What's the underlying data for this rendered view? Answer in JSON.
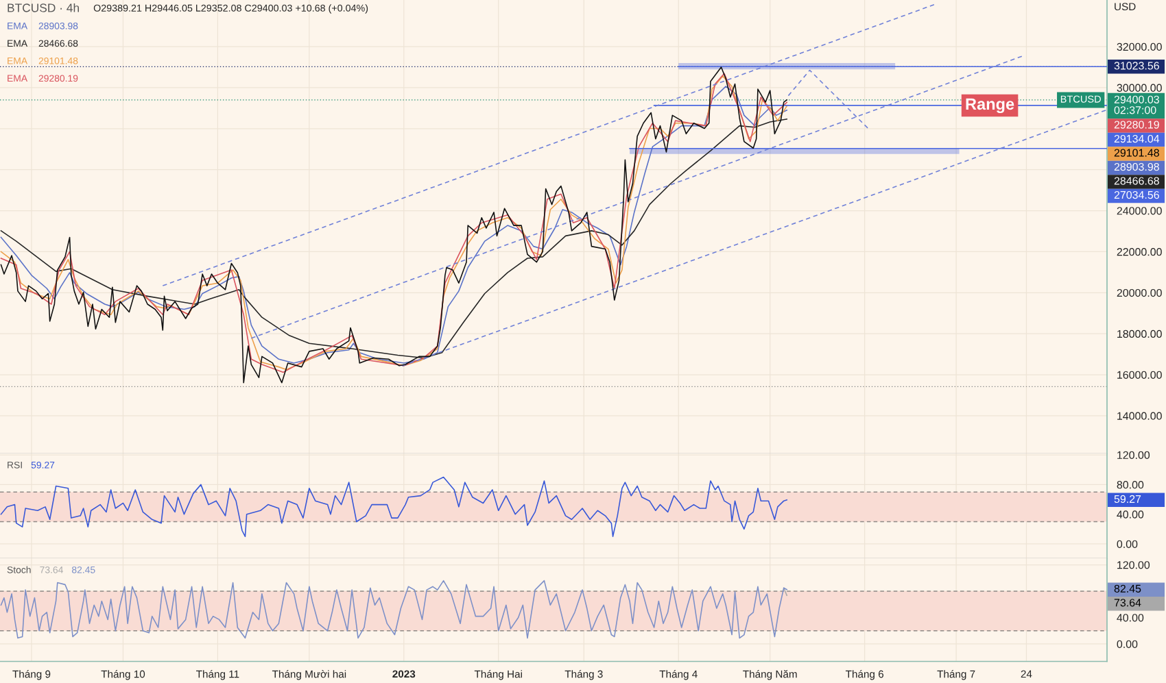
{
  "chart_data": [
    {
      "type": "line",
      "title": "BTCUSD · 4h",
      "subtitle": "O29389.21 H29446.05 L29352.08 C29400.03 +10.68 (+0.04%)",
      "ylabel": "USD",
      "legend": "top left",
      "grid": true,
      "tick_labels": "y",
      "xlim": [
        "2022-08-21T16:00",
        "2023-08-19T10:00"
      ],
      "xticks": [
        {
          "value": "2022-09-01",
          "label": null
        },
        {
          "value": "2022-10-01",
          "label": null
        },
        {
          "value": "2022-11-01",
          "label": null
        },
        {
          "value": "2022-12-01",
          "label": null
        },
        {
          "value": "2023-01-01",
          "label": null
        },
        {
          "value": "2023-02-01",
          "label": null
        },
        {
          "value": "2023-03-01",
          "label": null
        },
        {
          "value": "2023-04-01",
          "label": null
        },
        {
          "value": "2023-05-01",
          "label": null
        },
        {
          "value": "2023-06-01",
          "label": null
        },
        {
          "value": "2023-07-01",
          "label": null
        },
        {
          "value": "2023-07-24",
          "label": null
        }
      ],
      "ylim": [
        12158,
        34275
      ],
      "yticks": [
        {
          "value": 32000,
          "label": "32000.00"
        },
        {
          "value": 30000,
          "label": "30000.00"
        },
        {
          "value": 28000,
          "label": null
        },
        {
          "value": 26000,
          "label": null
        },
        {
          "value": 24000,
          "label": "24000.00"
        },
        {
          "value": 22000,
          "label": "22000.00"
        },
        {
          "value": 20000,
          "label": "20000.00"
        },
        {
          "value": 18000,
          "label": "18000.00"
        },
        {
          "value": 16000,
          "label": "16000.00"
        },
        {
          "value": 14000,
          "label": "14000.00"
        }
      ],
      "ref_lines": [
        {
          "axis": "y",
          "value": 31023.56,
          "label": "31023.56",
          "color": "#1b2a6b",
          "line_style": "dotted"
        },
        {
          "axis": "y",
          "value": 29400.03,
          "label": "29400.03\n02:37:00",
          "color": "#1f8f70",
          "line_style": "dotted"
        },
        {
          "axis": "y",
          "value": 15420,
          "color": "#8a8a8a",
          "line_style": "dotted"
        }
      ],
      "annotations": [
        {
          "text": "BTCUSD",
          "x": "2023-08-19T10:00",
          "y": 29400.03
        },
        {
          "text": "Range",
          "x": "2023-07-12",
          "y": 29130
        },
        "28903.98",
        "28466.68",
        "29101.48",
        "29280.19",
        "29134.04",
        "27034.56"
      ],
      "series": [
        {
          "name": "EMA",
          "color": "#5a72c8",
          "x": [
            "2022-08-22",
            "2022-08-27",
            "2022-09-01",
            "2022-09-06",
            "2022-09-08T12:00",
            "2022-09-10T12:00",
            "2022-09-13T12:00",
            "2022-09-15",
            "2022-09-19",
            "2022-09-25",
            "2022-09-27T12:00",
            "2022-10-01",
            "2022-10-06",
            "2022-10-09",
            "2022-10-15",
            "2022-10-21",
            "2022-10-24T12:00",
            "2022-10-27",
            "2022-11-01",
            "2022-11-05T12:00",
            "2022-11-08",
            "2022-11-09T12:00",
            "2022-11-12",
            "2022-11-15T12:00",
            "2022-11-21",
            "2022-11-26",
            "2022-12-01",
            "2022-12-07",
            "2022-12-14",
            "2022-12-15T12:00",
            "2022-12-17T12:00",
            "2022-12-23T12:00",
            "2023-01-01",
            "2023-01-07T12:00",
            "2023-01-12",
            "2023-01-15T12:00",
            "2023-01-19",
            "2023-01-22",
            "2023-01-27T12:00",
            "2023-02-04",
            "2023-02-08T12:00",
            "2023-02-12T12:00",
            "2023-02-15T12:00",
            "2023-02-19T12:00",
            "2023-02-22",
            "2023-02-25",
            "2023-03-02",
            "2023-03-05T12:00",
            "2023-03-09T12:00",
            "2023-03-13",
            "2023-03-15",
            "2023-03-17T12:00",
            "2023-03-21",
            "2023-03-23T12:00",
            "2023-03-29T12:00",
            "2023-04-02",
            "2023-04-09T12:00",
            "2023-04-12",
            "2023-04-16T12:00",
            "2023-04-20",
            "2023-04-22T12:00",
            "2023-04-26",
            "2023-04-27T12:00",
            "2023-05-01",
            "2023-05-03",
            "2023-05-06T12:00"
          ],
          "values": [
            22700,
            21810,
            20850,
            20210,
            19700,
            20270,
            20980,
            20470,
            19960,
            19440,
            19320,
            19570,
            20020,
            19700,
            19320,
            19190,
            19320,
            19960,
            20340,
            20720,
            20790,
            20080,
            18420,
            17400,
            16760,
            16570,
            16760,
            17080,
            17210,
            17530,
            17080,
            16760,
            16570,
            16760,
            17080,
            19320,
            20080,
            21230,
            22510,
            23280,
            23020,
            22260,
            22130,
            23150,
            24050,
            23920,
            23410,
            23150,
            22770,
            21360,
            22260,
            23920,
            25840,
            27120,
            27750,
            28140,
            28140,
            29420,
            30060,
            29670,
            28650,
            28140,
            28520,
            29030,
            28650,
            28903.98
          ]
        },
        {
          "name": "EMA",
          "color": "#262626",
          "x": [
            "2022-08-22",
            "2022-08-27",
            "2022-09-09",
            "2022-09-14",
            "2022-09-27T12:00",
            "2022-10-09",
            "2022-10-24T12:00",
            "2022-10-29T12:00",
            "2022-11-08",
            "2022-11-09T12:00",
            "2022-11-15T12:00",
            "2022-11-24T12:00",
            "2022-12-01",
            "2022-12-15",
            "2022-12-30",
            "2023-01-07T12:00",
            "2023-01-13T12:00",
            "2023-01-20T12:00",
            "2023-01-27T12:00",
            "2023-02-04",
            "2023-02-10T12:00",
            "2023-02-15T12:00",
            "2023-02-23",
            "2023-03-03T12:00",
            "2023-03-09",
            "2023-03-13T12:00",
            "2023-03-17T12:00",
            "2023-03-22T12:00",
            "2023-03-29T12:00",
            "2023-04-03T12:00",
            "2023-04-11T12:00",
            "2023-04-21",
            "2023-04-26",
            "2023-05-01",
            "2023-05-06T12:00"
          ],
          "values": [
            23020,
            22510,
            21040,
            21170,
            20150,
            19830,
            19440,
            19700,
            20150,
            19830,
            18800,
            17910,
            17530,
            17270,
            16950,
            16820,
            17080,
            18550,
            19960,
            20980,
            21680,
            21750,
            22770,
            23020,
            22830,
            22320,
            23020,
            24300,
            25330,
            25960,
            26920,
            28140,
            28070,
            28330,
            28466.68
          ]
        },
        {
          "name": "EMA",
          "color": "#eda04a",
          "x": [
            "2022-08-22",
            "2022-08-26T12:00",
            "2022-08-28T12:00",
            "2022-09-02",
            "2022-09-07",
            "2022-09-09",
            "2022-09-13",
            "2022-09-15",
            "2022-09-18",
            "2022-09-21T12:00",
            "2022-09-27",
            "2022-09-29",
            "2022-10-06",
            "2022-10-12",
            "2022-10-14T12:00",
            "2022-10-16T12:00",
            "2022-10-22T12:00",
            "2022-10-27",
            "2022-11-01",
            "2022-11-06",
            "2022-11-08T12:00",
            "2022-11-11",
            "2022-11-15",
            "2022-11-21",
            "2022-11-23T12:00",
            "2022-11-29T12:00",
            "2022-12-06T12:00",
            "2022-12-13",
            "2022-12-15T12:00",
            "2022-12-18",
            "2022-12-24T12:00",
            "2023-01-01",
            "2023-01-06T12:00",
            "2023-01-12",
            "2023-01-14",
            "2023-01-16",
            "2023-01-22",
            "2023-01-25",
            "2023-01-30",
            "2023-02-04",
            "2023-02-08T12:00",
            "2023-02-12",
            "2023-02-15",
            "2023-02-18",
            "2023-02-21T12:00",
            "2023-02-25",
            "2023-02-28",
            "2023-03-04T12:00",
            "2023-03-09",
            "2023-03-11T12:00",
            "2023-03-13T12:00",
            "2023-03-15T12:00",
            "2023-03-19",
            "2023-03-22T12:00",
            "2023-03-26",
            "2023-03-28T12:00",
            "2023-03-31",
            "2023-04-05T12:00",
            "2023-04-10",
            "2023-04-12",
            "2023-04-15T12:00",
            "2023-04-18T12:00",
            "2023-04-21",
            "2023-04-24",
            "2023-04-26T12:00",
            "2023-04-28T12:00",
            "2023-05-01T12:00",
            "2023-05-03T12:00",
            "2023-05-06T12:00"
          ],
          "values": [
            22000,
            21490,
            20470,
            19960,
            19700,
            20470,
            21620,
            20720,
            19830,
            19190,
            18930,
            19440,
            20080,
            19320,
            19250,
            19380,
            18930,
            20340,
            20470,
            21110,
            20600,
            18290,
            16630,
            16380,
            16250,
            16630,
            17140,
            17270,
            17780,
            16890,
            16690,
            16440,
            16690,
            17270,
            19830,
            20720,
            22380,
            23020,
            23410,
            23660,
            23150,
            22000,
            21810,
            24050,
            24560,
            23790,
            23530,
            22640,
            22130,
            20470,
            21110,
            24170,
            26350,
            28010,
            28010,
            27630,
            28270,
            28270,
            28140,
            29930,
            30570,
            30060,
            28900,
            27500,
            27880,
            29420,
            28900,
            28390,
            29101.48
          ]
        },
        {
          "name": "EMA",
          "color": "#d9535d",
          "x": [
            "2022-08-22",
            "2022-08-27",
            "2022-08-28T12:00",
            "2022-09-02T12:00",
            "2022-09-07T12:00",
            "2022-09-10",
            "2022-09-13T12:00",
            "2022-09-15T12:00",
            "2022-09-20",
            "2022-09-25",
            "2022-09-28T12:00",
            "2022-10-06",
            "2022-10-14",
            "2022-10-15T12:00",
            "2022-10-22T12:00",
            "2022-10-27",
            "2022-11-05T12:00",
            "2022-11-09T12:00",
            "2022-11-12",
            "2022-11-15T12:00",
            "2022-11-22T12:00",
            "2022-11-29T12:00",
            "2022-12-06T12:00",
            "2022-12-15",
            "2022-12-18",
            "2023-01-01",
            "2023-01-07T12:00",
            "2023-01-12",
            "2023-01-14T12:00",
            "2023-01-22",
            "2023-01-26T12:00",
            "2023-02-04",
            "2023-02-09T12:00",
            "2023-02-13T12:00",
            "2023-02-17",
            "2023-02-21T12:00",
            "2023-02-25T12:00",
            "2023-03-02",
            "2023-03-08",
            "2023-03-11",
            "2023-03-15",
            "2023-03-19",
            "2023-03-23T12:00",
            "2023-03-28T12:00",
            "2023-03-31",
            "2023-04-10",
            "2023-04-13",
            "2023-04-16",
            "2023-04-21",
            "2023-04-24T12:00",
            "2023-04-28",
            "2023-05-02",
            "2023-05-06T12:00"
          ],
          "values": [
            21680,
            21360,
            20210,
            19960,
            19440,
            21110,
            22000,
            20340,
            19320,
            18930,
            19570,
            20210,
            18930,
            19440,
            18930,
            20600,
            21110,
            18930,
            16760,
            16500,
            16120,
            16690,
            17210,
            17910,
            16760,
            16440,
            16820,
            17400,
            20470,
            22770,
            23410,
            23790,
            22770,
            21620,
            24560,
            24810,
            23410,
            23660,
            22130,
            20210,
            24690,
            27120,
            28270,
            27370,
            28390,
            28140,
            30180,
            30690,
            28900,
            27370,
            29540,
            28650,
            29280.19
          ]
        },
        {
          "color": "#4a67e0",
          "x": [
            "2023-03-24",
            "2023-08-19T10:00"
          ],
          "values": [
            29134.04,
            29134.04
          ]
        },
        {
          "color": "#4a67e0",
          "x": [
            "2023-03-16",
            "2023-07-02",
            "2023-08-19T10:00"
          ],
          "values": [
            27034.56,
            27034.56,
            27034.56
          ],
          "lower": [
            26770,
            26770,
            null
          ],
          "upper": [
            27050,
            27050,
            null
          ]
        },
        {
          "color": "#4a67e0",
          "x": [
            "2023-04-01",
            "2023-06-11",
            "2023-08-19T10:00"
          ],
          "values": [
            31023.56,
            31023.56,
            31023.56
          ],
          "lower": [
            30890,
            30890,
            null
          ],
          "upper": [
            31200,
            31200,
            null
          ]
        },
        {
          "color": "#6f80d8",
          "line_style": "dashed",
          "x": [
            "2022-10-14",
            "2023-06-23T18:00"
          ],
          "values": [
            20340,
            34050
          ]
        },
        {
          "color": "#6f80d8",
          "line_style": "dashed",
          "x": [
            "2022-11-12",
            "2023-07-22T12:00"
          ],
          "values": [
            17780,
            31530
          ]
        },
        {
          "color": "#6f80d8",
          "line_style": "dashed",
          "x": [
            "2022-12-31T12:00",
            "2023-08-19"
          ],
          "values": [
            16430,
            28900
          ]
        },
        {
          "color": "#6f80d8",
          "line_style": "dashed",
          "x": [
            "2023-05-07",
            "2023-05-14",
            "2023-06-02"
          ],
          "values": [
            29610,
            30850,
            28030
          ]
        },
        {
          "color": "#111111",
          "x": [
            "2022-08-22",
            "2022-08-23",
            "2022-08-25T12:00",
            "2022-08-27",
            "2022-08-27T12:00",
            "2022-08-30",
            "2022-08-31",
            "2022-09-02T12:00",
            "2022-09-04T12:00",
            "2022-09-06T12:00",
            "2022-09-07",
            "2022-09-08T12:00",
            "2022-09-09T12:00",
            "2022-09-12",
            "2022-09-13T12:00",
            "2022-09-14",
            "2022-09-15",
            "2022-09-16T12:00",
            "2022-09-18",
            "2022-09-19T12:00",
            "2022-09-21",
            "2022-09-22",
            "2022-09-24",
            "2022-09-26T12:00",
            "2022-09-27T12:00",
            "2022-09-28T12:00",
            "2022-09-30",
            "2022-10-03",
            "2022-10-05T12:00",
            "2022-10-07",
            "2022-10-09",
            "2022-10-11T12:00",
            "2022-10-13T12:00",
            "2022-10-14",
            "2022-10-14T12:00",
            "2022-10-15T12:00",
            "2022-10-18",
            "2022-10-21T12:00",
            "2022-10-23T12:00",
            "2022-10-25T12:00",
            "2022-10-27",
            "2022-10-28T12:00",
            "2022-10-30",
            "2022-11-01",
            "2022-11-03T12:00",
            "2022-11-05T12:00",
            "2022-11-07T12:00",
            "2022-11-08T12:00",
            "2022-11-09",
            "2022-11-09T12:00",
            "2022-11-11",
            "2022-11-12",
            "2022-11-14T12:00",
            "2022-11-15T12:00",
            "2022-11-19",
            "2022-11-22",
            "2022-11-24",
            "2022-11-28T12:00",
            "2022-12-01",
            "2022-12-05T12:00",
            "2022-12-07T12:00",
            "2022-12-10",
            "2022-12-14",
            "2022-12-14T12:00",
            "2022-12-17",
            "2022-12-17T12:00",
            "2022-12-22",
            "2022-12-27",
            "2022-12-30T12:00",
            "2023-01-01T12:00",
            "2023-01-06",
            "2023-01-09T12:00",
            "2023-01-12",
            "2023-01-13",
            "2023-01-14T12:00",
            "2023-01-15",
            "2023-01-17",
            "2023-01-19",
            "2023-01-21T12:00",
            "2023-01-22",
            "2023-01-25",
            "2023-01-26T12:00",
            "2023-01-28",
            "2023-01-30T12:00",
            "2023-01-31T12:00",
            "2023-02-03",
            "2023-02-06",
            "2023-02-08T12:00",
            "2023-02-10T12:00",
            "2023-02-13T12:00",
            "2023-02-15T12:00",
            "2023-02-16T12:00",
            "2023-02-18T12:00",
            "2023-02-20",
            "2023-02-21T12:00",
            "2023-02-24",
            "2023-02-25",
            "2023-02-28",
            "2023-03-02",
            "2023-03-03T12:00",
            "2023-03-08",
            "2023-03-09T12:00",
            "2023-03-11",
            "2023-03-12T12:00",
            "2023-03-14",
            "2023-03-14T12:00",
            "2023-03-15T12:00",
            "2023-03-17",
            "2023-03-18T12:00",
            "2023-03-20T12:00",
            "2023-03-23",
            "2023-03-24T12:00",
            "2023-03-26",
            "2023-03-28",
            "2023-03-30",
            "2023-04-02",
            "2023-04-03T12:00",
            "2023-04-06",
            "2023-04-09T12:00",
            "2023-04-11",
            "2023-04-11T12:00",
            "2023-04-15",
            "2023-04-16T12:00",
            "2023-04-18",
            "2023-04-19T12:00",
            "2023-04-21",
            "2023-04-22T12:00",
            "2023-04-25T12:00",
            "2023-04-26T12:00",
            "2023-04-27",
            "2023-04-29T12:00",
            "2023-05-01",
            "2023-05-02",
            "2023-05-02T12:00",
            "2023-05-04T12:00",
            "2023-05-05T12:00",
            "2023-05-06T12:00"
          ],
          "values": [
            21360,
            20910,
            21810,
            20980,
            20080,
            19570,
            20340,
            20080,
            19700,
            19960,
            18610,
            19440,
            21110,
            21750,
            22700,
            20850,
            20080,
            19440,
            20020,
            18360,
            19440,
            18230,
            19190,
            18800,
            20270,
            18550,
            19570,
            19060,
            20340,
            20080,
            19440,
            19190,
            18800,
            18170,
            19830,
            19120,
            19570,
            18740,
            19250,
            19440,
            20910,
            20340,
            20910,
            20470,
            20150,
            21430,
            20980,
            20340,
            18170,
            15610,
            17400,
            16500,
            15860,
            16890,
            16570,
            15610,
            16570,
            16380,
            17140,
            17270,
            16760,
            17270,
            17650,
            18290,
            17140,
            16570,
            16820,
            16760,
            16440,
            16500,
            16890,
            16890,
            17400,
            18290,
            20850,
            21230,
            21110,
            20470,
            21490,
            23280,
            22900,
            23660,
            23150,
            23920,
            22770,
            24110,
            23280,
            23280,
            21870,
            21490,
            22000,
            25070,
            24300,
            24940,
            25200,
            23920,
            23020,
            23410,
            23920,
            22260,
            22130,
            21490,
            19640,
            20590,
            24560,
            26480,
            24430,
            25330,
            27630,
            28270,
            28780,
            27500,
            28140,
            26860,
            28650,
            28390,
            27750,
            28270,
            28010,
            28270,
            30310,
            31000,
            30440,
            29540,
            30180,
            28520,
            27370,
            27050,
            27500,
            29930,
            29290,
            29860,
            28520,
            27750,
            28390,
            29290,
            29400.03
          ]
        }
      ]
    },
    {
      "type": "line",
      "title": "RSI",
      "grid": true,
      "tick_labels": "y",
      "xlim": [
        "2022-08-21T16:00",
        "2023-08-19T10:00"
      ],
      "xticks": [
        {
          "value": "2022-09-01",
          "label": null
        },
        {
          "value": "2022-10-01",
          "label": null
        },
        {
          "value": "2022-11-01",
          "label": null
        },
        {
          "value": "2022-12-01",
          "label": null
        },
        {
          "value": "2023-01-01",
          "label": null
        },
        {
          "value": "2023-02-01",
          "label": null
        },
        {
          "value": "2023-03-01",
          "label": null
        },
        {
          "value": "2023-04-01",
          "label": null
        },
        {
          "value": "2023-05-01",
          "label": null
        },
        {
          "value": "2023-06-01",
          "label": null
        },
        {
          "value": "2023-07-01",
          "label": null
        },
        {
          "value": "2023-07-24",
          "label": null
        }
      ],
      "ylim": [
        -19.4,
        121.9
      ],
      "yticks": [
        {
          "value": 120,
          "label": "120.00"
        },
        {
          "value": 80,
          "label": "80.00"
        },
        {
          "value": 40,
          "label": "40.00"
        },
        {
          "value": 0,
          "label": "0.00"
        }
      ],
      "bands": [
        {
          "axis": "y",
          "from": 30,
          "to": 70,
          "color": "#f9dcd4"
        }
      ],
      "ref_lines": [
        {
          "axis": "y",
          "value": 70,
          "color": "#8f8a86",
          "line_style": "dashed"
        },
        {
          "axis": "y",
          "value": 30,
          "color": "#8f8a86",
          "line_style": "dashed"
        }
      ],
      "annotations": [
        "59.27"
      ],
      "series": [
        {
          "color": "#3858d8",
          "x": [
            "2022-08-22",
            "2022-08-24",
            "2022-08-26T12:00",
            "2022-08-27",
            "2022-08-29",
            "2022-08-30",
            "2022-09-03",
            "2022-09-05T12:00",
            "2022-09-07",
            "2022-09-09",
            "2022-09-13",
            "2022-09-14",
            "2022-09-17",
            "2022-09-18",
            "2022-09-19T12:00",
            "2022-09-20T12:00",
            "2022-09-23T12:00",
            "2022-09-25T12:00",
            "2022-09-27",
            "2022-09-28T12:00",
            "2022-10-01",
            "2022-10-02T12:00",
            "2022-10-05",
            "2022-10-07T12:00",
            "2022-10-10T12:00",
            "2022-10-13T12:00",
            "2022-10-14T12:00",
            "2022-10-18",
            "2022-10-19",
            "2022-10-21",
            "2022-10-24",
            "2022-10-26T12:00",
            "2022-10-29",
            "2022-10-31T12:00",
            "2022-11-03T12:00",
            "2022-11-05",
            "2022-11-07",
            "2022-11-09",
            "2022-11-10",
            "2022-11-10T12:00",
            "2022-11-15",
            "2022-11-17T12:00",
            "2022-11-21",
            "2022-11-22",
            "2022-11-24",
            "2022-11-27",
            "2022-11-29",
            "2022-12-01",
            "2022-12-03",
            "2022-12-07",
            "2022-12-08",
            "2022-12-09T12:00",
            "2022-12-11T12:00",
            "2022-12-14",
            "2022-12-16T12:00",
            "2022-12-19T12:00",
            "2022-12-21T12:00",
            "2022-12-26T12:00",
            "2022-12-28",
            "2022-12-30",
            "2023-01-01T12:00",
            "2023-01-02T12:00",
            "2023-01-06T12:00",
            "2023-01-09T12:00",
            "2023-01-10T12:00",
            "2023-01-14",
            "2023-01-17T12:00",
            "2023-01-19",
            "2023-01-21",
            "2023-01-23T12:00",
            "2023-01-27",
            "2023-01-30",
            "2023-02-01",
            "2023-02-03T12:00",
            "2023-02-06T12:00",
            "2023-02-09T12:00",
            "2023-02-10T12:00",
            "2023-02-13",
            "2023-02-16",
            "2023-02-17T12:00",
            "2023-02-20",
            "2023-02-23",
            "2023-02-25",
            "2023-02-28T12:00",
            "2023-03-03",
            "2023-03-05T12:00",
            "2023-03-08",
            "2023-03-10",
            "2023-03-10T12:00",
            "2023-03-12",
            "2023-03-13T12:00",
            "2023-03-14T12:00",
            "2023-03-16T12:00",
            "2023-03-18T12:00",
            "2023-03-20",
            "2023-03-22T12:00",
            "2023-03-24T12:00",
            "2023-03-26",
            "2023-03-28T12:00",
            "2023-03-30T12:00",
            "2023-04-01T12:00",
            "2023-04-03",
            "2023-04-06",
            "2023-04-08",
            "2023-04-10",
            "2023-04-11T12:00",
            "2023-04-13",
            "2023-04-14",
            "2023-04-16",
            "2023-04-18",
            "2023-04-18T12:00",
            "2023-04-19T12:00",
            "2023-04-21",
            "2023-04-22T12:00",
            "2023-04-24",
            "2023-04-25T12:00",
            "2023-04-27",
            "2023-04-28",
            "2023-04-30T12:00",
            "2023-05-02T12:00",
            "2023-05-03T12:00",
            "2023-05-05T12:00",
            "2023-05-06T12:00"
          ],
          "values": [
            40,
            50,
            53,
            28,
            23,
            48,
            45,
            50,
            33,
            78,
            75,
            35,
            38,
            48,
            23,
            45,
            53,
            43,
            73,
            48,
            55,
            45,
            73,
            43,
            33,
            28,
            65,
            43,
            63,
            40,
            68,
            80,
            53,
            58,
            38,
            75,
            58,
            18,
            10,
            40,
            45,
            53,
            48,
            28,
            58,
            53,
            35,
            75,
            58,
            53,
            40,
            65,
            53,
            83,
            30,
            38,
            53,
            53,
            35,
            35,
            53,
            63,
            65,
            73,
            83,
            90,
            73,
            50,
            83,
            63,
            55,
            73,
            45,
            65,
            40,
            53,
            25,
            43,
            85,
            55,
            65,
            38,
            33,
            48,
            33,
            45,
            38,
            28,
            10,
            38,
            75,
            83,
            65,
            78,
            63,
            58,
            45,
            53,
            43,
            65,
            55,
            45,
            53,
            48,
            48,
            85,
            73,
            78,
            58,
            53,
            30,
            58,
            33,
            20,
            38,
            43,
            75,
            58,
            58,
            33,
            50,
            58,
            59.27
          ]
        }
      ]
    },
    {
      "type": "line",
      "title": "Stoch",
      "grid": true,
      "xlim": [
        "2022-08-21T16:00",
        "2023-08-19T10:00"
      ],
      "xticks": [
        {
          "value": "2022-09-01",
          "label": "Tháng 9"
        },
        {
          "value": "2022-10-01",
          "label": "Tháng 10"
        },
        {
          "value": "2022-11-01",
          "label": "Tháng 11"
        },
        {
          "value": "2022-12-01",
          "label": "Tháng Mười hai"
        },
        {
          "value": "2023-01-01",
          "label": "2023"
        },
        {
          "value": "2023-02-01",
          "label": "Tháng Hai"
        },
        {
          "value": "2023-03-01",
          "label": "Tháng 3"
        },
        {
          "value": "2023-04-01",
          "label": "Tháng 4"
        },
        {
          "value": "2023-05-01",
          "label": "Tháng Năm"
        },
        {
          "value": "2023-06-01",
          "label": "Tháng 6"
        },
        {
          "value": "2023-07-01",
          "label": "Tháng 7"
        },
        {
          "value": "2023-07-24",
          "label": "24"
        }
      ],
      "ylim": [
        -26.5,
        129.9
      ],
      "yticks": [
        {
          "value": 120,
          "label": "120.00"
        },
        {
          "value": 80,
          "label": null
        },
        {
          "value": 40,
          "label": "40.00"
        },
        {
          "value": 0,
          "label": "0.00"
        }
      ],
      "bands": [
        {
          "axis": "y",
          "from": 20,
          "to": 80,
          "color": "#f9dcd4"
        }
      ],
      "ref_lines": [
        {
          "axis": "y",
          "value": 80,
          "color": "#8f8a86",
          "line_style": "dashed"
        },
        {
          "axis": "y",
          "value": 20,
          "color": "#8f8a86",
          "line_style": "dashed"
        }
      ],
      "annotations": [
        "73.64",
        "82.45"
      ],
      "series": [
        {
          "color": "#a9a9a9",
          "x": [
            "2023-05-05T12:00",
            "2023-05-06T12:00"
          ],
          "values": [
            85,
            73.64
          ]
        },
        {
          "color": "#7d90c8",
          "x": [
            "2022-08-22",
            "2022-08-23",
            "2022-08-24",
            "2022-08-25T12:00",
            "2022-08-26T12:00",
            "2022-08-27T12:00",
            "2022-08-29",
            "2022-08-30",
            "2022-08-31T12:00",
            "2022-09-02",
            "2022-09-03T12:00",
            "2022-09-04T12:00",
            "2022-09-06",
            "2022-09-07",
            "2022-09-09",
            "2022-09-09T12:00",
            "2022-09-12",
            "2022-09-13",
            "2022-09-14T12:00",
            "2022-09-16",
            "2022-09-18",
            "2022-09-18T12:00",
            "2022-09-20",
            "2022-09-21T12:00",
            "2022-09-23",
            "2022-09-24",
            "2022-09-26",
            "2022-09-27",
            "2022-09-28T12:00",
            "2022-09-30",
            "2022-10-01T12:00",
            "2022-10-02T12:00",
            "2022-10-04",
            "2022-10-05T12:00",
            "2022-10-07T12:00",
            "2022-10-09T12:00",
            "2022-10-10T12:00",
            "2022-10-12T12:00",
            "2022-10-14",
            "2022-10-16T12:00",
            "2022-10-18",
            "2022-10-19",
            "2022-10-21T12:00",
            "2022-10-23T12:00",
            "2022-10-25",
            "2022-10-27",
            "2022-10-29",
            "2022-10-30T12:00",
            "2022-11-01T12:00",
            "2022-11-03T12:00",
            "2022-11-06",
            "2022-11-07T12:00",
            "2022-11-10",
            "2022-11-12T12:00",
            "2022-11-14T12:00",
            "2022-11-15T12:00",
            "2022-11-17T12:00",
            "2022-11-19",
            "2022-11-21",
            "2022-11-23T12:00",
            "2022-11-26",
            "2022-11-27",
            "2022-11-29",
            "2022-12-01",
            "2022-12-02",
            "2022-12-04",
            "2022-12-07",
            "2022-12-08T12:00",
            "2022-12-10",
            "2022-12-11T12:00",
            "2022-12-13T12:00",
            "2022-12-15",
            "2022-12-17",
            "2022-12-19",
            "2022-12-21",
            "2022-12-22T12:00",
            "2022-12-24",
            "2022-12-26T12:00",
            "2022-12-29",
            "2022-12-31",
            "2023-01-02T12:00",
            "2023-01-04T12:00",
            "2023-01-07",
            "2023-01-08T12:00",
            "2023-01-10T12:00",
            "2023-01-12",
            "2023-01-14",
            "2023-01-16T12:00",
            "2023-01-19T12:00",
            "2023-01-21T12:00",
            "2023-01-24T12:00",
            "2023-01-27",
            "2023-01-29T12:00",
            "2023-01-30T12:00",
            "2023-02-01",
            "2023-02-03T12:00",
            "2023-02-05",
            "2023-02-07T12:00",
            "2023-02-09",
            "2023-02-10T12:00",
            "2023-02-13",
            "2023-02-16",
            "2023-02-18",
            "2023-02-20",
            "2023-02-23",
            "2023-02-26",
            "2023-02-28T12:00",
            "2023-03-02",
            "2023-03-03T12:00",
            "2023-03-05T12:00",
            "2023-03-07T12:00",
            "2023-03-10",
            "2023-03-11",
            "2023-03-13",
            "2023-03-14T12:00",
            "2023-03-16",
            "2023-03-17",
            "2023-03-18T12:00",
            "2023-03-20",
            "2023-03-22",
            "2023-03-24",
            "2023-03-25T12:00",
            "2023-03-27",
            "2023-03-28T12:00",
            "2023-03-30",
            "2023-03-31T12:00",
            "2023-04-02",
            "2023-04-04",
            "2023-04-05T12:00",
            "2023-04-07T12:00",
            "2023-04-09",
            "2023-04-11T12:00",
            "2023-04-13T12:00",
            "2023-04-15T12:00",
            "2023-04-16T12:00",
            "2023-04-18T12:00",
            "2023-04-19T12:00",
            "2023-04-21",
            "2023-04-22T12:00",
            "2023-04-24",
            "2023-04-25T12:00",
            "2023-04-27",
            "2023-04-28",
            "2023-04-30",
            "2023-05-02T12:00",
            "2023-05-04",
            "2023-05-05T12:00",
            "2023-05-06T12:00"
          ],
          "values": [
            59,
            70,
            48,
            76,
            37,
            9,
            11,
            82,
            42,
            70,
            20,
            42,
            48,
            17,
            65,
            93,
            90,
            79,
            11,
            17,
            65,
            82,
            31,
            59,
            42,
            65,
            37,
            68,
            20,
            59,
            87,
            31,
            87,
            70,
            20,
            17,
            42,
            25,
            87,
            37,
            82,
            23,
            37,
            87,
            25,
            87,
            31,
            42,
            37,
            25,
            93,
            25,
            9,
            48,
            37,
            76,
            31,
            20,
            31,
            93,
            76,
            54,
            20,
            87,
            65,
            31,
            20,
            48,
            82,
            54,
            20,
            82,
            9,
            25,
            85,
            59,
            70,
            31,
            14,
            54,
            87,
            82,
            37,
            82,
            87,
            82,
            96,
            76,
            31,
            90,
            42,
            42,
            54,
            87,
            20,
            59,
            23,
            40,
            59,
            9,
            82,
            96,
            59,
            76,
            20,
            48,
            82,
            54,
            20,
            42,
            59,
            14,
            11,
            70,
            90,
            65,
            31,
            93,
            82,
            48,
            25,
            65,
            31,
            48,
            87,
            54,
            25,
            59,
            82,
            20,
            65,
            87,
            54,
            76,
            59,
            14,
            79,
            9,
            14,
            42,
            48,
            87,
            59,
            76,
            11,
            54,
            85,
            82.45
          ]
        }
      ]
    }
  ]
}
